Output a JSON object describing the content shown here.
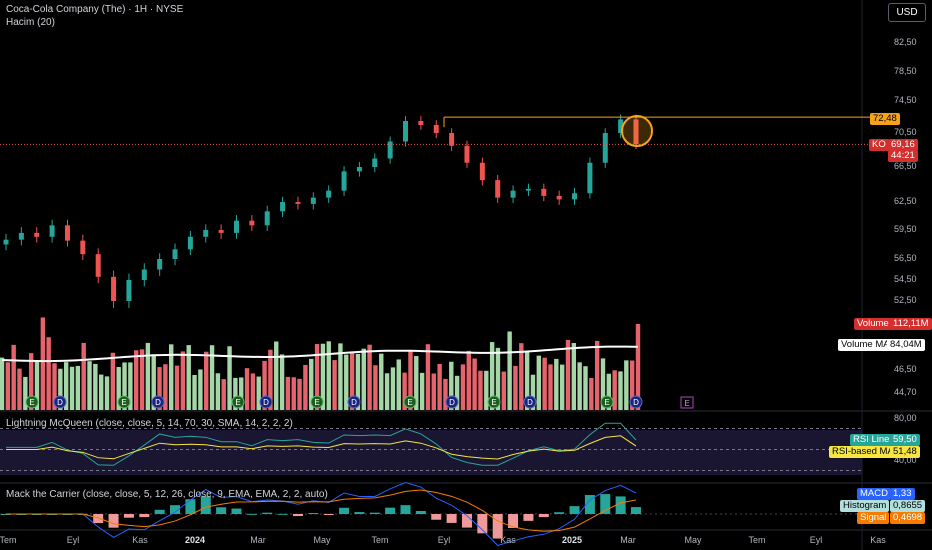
{
  "header": {
    "title": "Coca-Cola Company (The) · 1H · NYSE",
    "volume_label": "Hacim (20)",
    "currency": "USD"
  },
  "price_axis": {
    "ticks": [
      "82,50",
      "78,50",
      "74,50",
      "70,50",
      "66,50",
      "62,50",
      "59,50",
      "56,50",
      "54,50",
      "52,50",
      "46,50",
      "44,70"
    ],
    "resistance_label": "72,48",
    "last_tag": "KO",
    "last_price": "69,16",
    "countdown": "44:21"
  },
  "volume_pane": {
    "volume_label": "Volume",
    "volume_value": "112,11M",
    "ma_label": "Volume MA",
    "ma_value": "84,04M"
  },
  "rsi_pane": {
    "title": "Lightning McQueen (close, close, 5, 14, 70, 30, SMA, 14, 2, 2, 2)",
    "top_tick": "80,00",
    "bottom_tick": "40,00",
    "rsi_label": "RSI Line",
    "rsi_value": "59,50",
    "ma_label": "RSI-based MA",
    "ma_value": "51,48"
  },
  "macd_pane": {
    "title": "Mack the Carrier (close, close, 5, 12, 26, close, 9, EMA, EMA, 2, 2, auto)",
    "macd_label": "MACD",
    "macd_value": "1,33",
    "hist_label": "Histogram",
    "hist_value": "0,8655",
    "signal_label": "Signal",
    "signal_value": "0,4698"
  },
  "x_axis": [
    "Tem",
    "Eyl",
    "Kas",
    "2024",
    "Mar",
    "May",
    "Tem",
    "Eyl",
    "Kas",
    "2025",
    "Mar",
    "May",
    "Tem",
    "Eyl",
    "Kas"
  ],
  "colors": {
    "up": "#26a69a",
    "down": "#ef5350",
    "vol_up": "#a5d6a7",
    "vol_down": "#e5636c",
    "accent": "#f7a21b"
  },
  "chart_data": {
    "type": "candlestick",
    "title": "Coca-Cola Company (The) · 1H · NYSE",
    "y_unit": "USD",
    "price_ticks": [
      82.5,
      78.5,
      74.5,
      70.5,
      66.5,
      62.5,
      59.5,
      56.5,
      54.5,
      52.5,
      46.5,
      44.7
    ],
    "resistance_level": 72.48,
    "last_price": 69.16,
    "approx_closes": [
      58.5,
      59.2,
      58.8,
      60.0,
      58.4,
      57.0,
      54.8,
      52.5,
      54.5,
      55.5,
      56.5,
      57.5,
      58.8,
      59.5,
      59.2,
      60.5,
      60.0,
      61.5,
      62.5,
      62.3,
      63.0,
      63.8,
      66.0,
      66.5,
      67.5,
      69.5,
      72.0,
      71.5,
      70.5,
      69.0,
      67.0,
      65.0,
      63.0,
      63.8,
      64.0,
      63.2,
      62.8,
      63.5,
      67.0,
      70.5,
      72.2,
      69.2
    ],
    "volume": {
      "last": "112,11M",
      "ma": "84,04M"
    },
    "rsi": {
      "rsi_line": 59.5,
      "rsi_ma": 51.48,
      "range": [
        40,
        80
      ]
    },
    "macd": {
      "macd": 1.33,
      "histogram": 0.8655,
      "signal": 0.4698
    },
    "x_ticks": [
      "Tem",
      "Eyl",
      "Kas",
      "2024",
      "Mar",
      "May",
      "Tem",
      "Eyl",
      "Kas",
      "2025",
      "Mar",
      "May",
      "Tem",
      "Eyl",
      "Kas"
    ]
  }
}
